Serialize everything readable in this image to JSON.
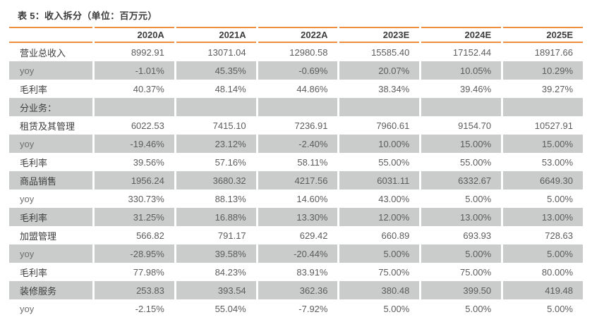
{
  "title": "表 5：收入拆分（单位：百万元）",
  "colors": {
    "accent_orange": "#EF8E3F",
    "row_shade": "#CACCCB",
    "label_text": "#3D3D3D",
    "value_text": "#5C5C5C"
  },
  "table": {
    "header": [
      "2020A",
      "2021A",
      "2022A",
      "2023E",
      "2024E",
      "2025E"
    ],
    "rows": [
      {
        "label": "营业总收入",
        "values": [
          "8992.91",
          "13071.04",
          "12980.58",
          "15585.40",
          "17152.44",
          "18917.66"
        ]
      },
      {
        "label": "yoy",
        "values": [
          "-1.01%",
          "45.35%",
          "-0.69%",
          "20.07%",
          "10.05%",
          "10.29%"
        ]
      },
      {
        "label": "毛利率",
        "values": [
          "40.37%",
          "48.14%",
          "44.86%",
          "38.34%",
          "39.46%",
          "39.27%"
        ]
      },
      {
        "label": "分业务：",
        "values": [
          "",
          "",
          "",
          "",
          "",
          ""
        ]
      },
      {
        "label": "租赁及其管理",
        "values": [
          "6022.53",
          "7415.10",
          "7236.91",
          "7960.61",
          "9154.70",
          "10527.91"
        ]
      },
      {
        "label": "yoy",
        "values": [
          "-19.46%",
          "23.12%",
          "-2.40%",
          "10.00%",
          "15.00%",
          "15.00%"
        ]
      },
      {
        "label": "毛利率",
        "values": [
          "39.56%",
          "57.16%",
          "58.11%",
          "55.00%",
          "55.00%",
          "53.00%"
        ]
      },
      {
        "label": "商品销售",
        "values": [
          "1956.24",
          "3680.32",
          "4217.56",
          "6031.11",
          "6332.67",
          "6649.30"
        ]
      },
      {
        "label": "yoy",
        "values": [
          "330.73%",
          "88.13%",
          "14.60%",
          "43.00%",
          "5.00%",
          "5.00%"
        ]
      },
      {
        "label": "毛利率",
        "values": [
          "31.25%",
          "16.88%",
          "13.30%",
          "12.00%",
          "13.00%",
          "13.00%"
        ]
      },
      {
        "label": "加盟管理",
        "values": [
          "566.82",
          "791.17",
          "629.42",
          "660.89",
          "693.93",
          "728.63"
        ]
      },
      {
        "label": "yoy",
        "values": [
          "-28.95%",
          "39.58%",
          "-20.44%",
          "5.00%",
          "5.00%",
          "5.00%"
        ]
      },
      {
        "label": "毛利率",
        "values": [
          "77.98%",
          "84.23%",
          "83.91%",
          "75.00%",
          "75.00%",
          "80.00%"
        ]
      },
      {
        "label": "装修服务",
        "values": [
          "253.83",
          "393.54",
          "362.36",
          "380.48",
          "399.50",
          "419.48"
        ]
      },
      {
        "label": "yoy",
        "values": [
          "-2.15%",
          "55.04%",
          "-7.92%",
          "5.00%",
          "5.00%",
          "5.00%"
        ]
      }
    ]
  }
}
